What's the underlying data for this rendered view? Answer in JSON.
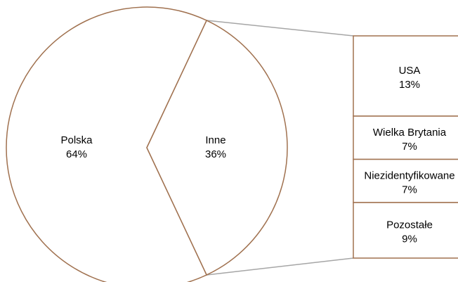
{
  "chart_data": {
    "type": "bar-of-pie",
    "title": "",
    "pie": {
      "slices": [
        {
          "label": "Polska",
          "value": 64,
          "value_label": "64%"
        },
        {
          "label": "Inne",
          "value": 36,
          "value_label": "36%",
          "exploded": true
        }
      ]
    },
    "breakdown_of": "Inne",
    "bar": {
      "segments": [
        {
          "label": "USA",
          "value": 13,
          "value_label": "13%"
        },
        {
          "label": "Wielka Brytania",
          "value": 7,
          "value_label": "7%"
        },
        {
          "label": "Niezidentyfikowane",
          "value": 7,
          "value_label": "7%"
        },
        {
          "label": "Pozostałe",
          "value": 9,
          "value_label": "9%"
        }
      ]
    },
    "colors": {
      "outline": "#a0714f",
      "connector": "#a6a6a6",
      "fill": "#ffffff",
      "text": "#000000"
    }
  }
}
